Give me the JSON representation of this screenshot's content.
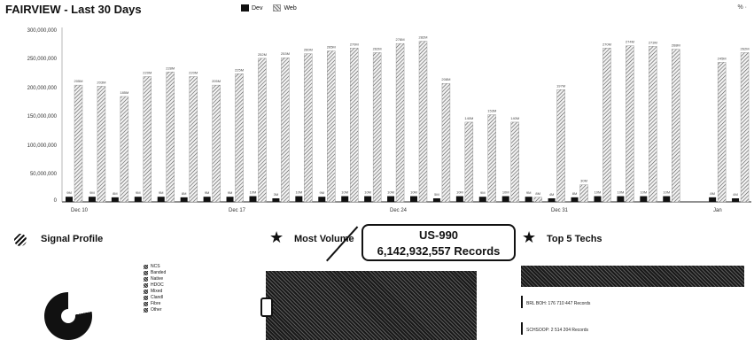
{
  "header": {
    "title": "FAIRVIEW - Last 30 Days",
    "corner_mark": "% ·"
  },
  "legend": [
    {
      "label": "Dev"
    },
    {
      "label": "Web"
    }
  ],
  "chart_data": {
    "type": "bar",
    "title": "FAIRVIEW - Last 30 Days",
    "y_ticks": [
      "300,000,000",
      "250,000,000",
      "200,000,000",
      "150,000,000",
      "100,000,000",
      "50,000,000",
      "0"
    ],
    "ylim": [
      0,
      300000000
    ],
    "x_tick_labels": [
      "Dec 10",
      "Dec 17",
      "Dec 24",
      "Dec 31",
      "Jan"
    ],
    "series": [
      {
        "name": "Dev",
        "values": [
          9000000,
          9000000,
          8000000,
          9000000,
          9000000,
          8000000,
          9000000,
          9000000,
          10000000,
          3000000,
          10000000,
          9000000,
          10000000,
          10000000,
          10000000,
          10000000,
          5000000,
          10000000,
          9000000,
          10000000,
          9000000,
          4000000,
          8000000,
          10000000,
          10000000,
          10000000,
          10000000,
          null,
          8000000,
          4000000
        ]
      },
      {
        "name": "Web",
        "values": [
          205000000,
          203000000,
          185000000,
          220000000,
          228000000,
          220000000,
          205000000,
          225000000,
          252000000,
          253000000,
          260000000,
          265000000,
          270000000,
          262000000,
          278000000,
          282000000,
          208000000,
          140000000,
          153000000,
          140000000,
          8000000,
          197000000,
          30000000,
          270000000,
          274000000,
          273000000,
          268000000,
          null,
          245000000,
          262000000
        ]
      }
    ],
    "legend_position": "top-center"
  },
  "panels": {
    "signal": {
      "title": "Signal Profile",
      "legend": [
        "NCS",
        "Banded",
        "Native",
        "HDOC",
        "Mixed",
        "Clandl",
        "Fibre",
        "Other"
      ]
    },
    "volume": {
      "title": "Most Volume",
      "tooltip_name": "US-990",
      "tooltip_value": "6,142,932,557 Records"
    },
    "techs": {
      "title": "Top 5 Techs",
      "rows": [
        "BRL BOH: 176 710 447 Records",
        "SCHSOOP: 2 514 204 Records"
      ]
    }
  }
}
